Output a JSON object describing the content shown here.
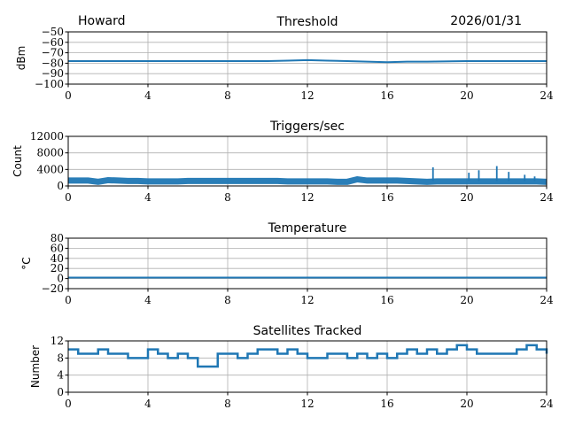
{
  "header": {
    "station": "Howard",
    "date": "2026/01/31"
  },
  "colors": {
    "series": "#1f77b4"
  },
  "chart_data": [
    {
      "type": "line",
      "title": "Threshold",
      "ylabel": "dBm",
      "xlim": [
        0,
        24
      ],
      "ylim": [
        -100,
        -50
      ],
      "xticks": [
        "0",
        "4",
        "8",
        "12",
        "16",
        "20",
        "24"
      ],
      "yticks": [
        "−100",
        "−90",
        "−80",
        "−70",
        "−60",
        "−50"
      ],
      "ytick_values": [
        -100,
        -90,
        -80,
        -70,
        -60,
        -50
      ],
      "grid": true,
      "x": [
        0,
        2,
        4,
        6,
        8,
        10,
        11,
        12,
        13,
        14,
        15,
        16,
        17,
        18,
        20,
        22,
        24
      ],
      "values": [
        -78,
        -78,
        -78,
        -78,
        -78,
        -78,
        -77.5,
        -77,
        -77.5,
        -78,
        -78.5,
        -79,
        -78.5,
        -78.5,
        -78,
        -78,
        -78
      ]
    },
    {
      "type": "line",
      "title": "Triggers/sec",
      "ylabel": "Count",
      "xlim": [
        0,
        24
      ],
      "ylim": [
        0,
        12000
      ],
      "xticks": [
        "0",
        "4",
        "8",
        "12",
        "16",
        "20",
        "24"
      ],
      "yticks": [
        "0",
        "4000",
        "8000",
        "12000"
      ],
      "ytick_values": [
        0,
        4000,
        8000,
        12000
      ],
      "grid": true,
      "x": [
        0,
        0.5,
        1,
        1.5,
        2,
        2.5,
        3,
        3.5,
        4,
        4.5,
        5,
        5.5,
        6,
        6.5,
        7,
        7.5,
        8,
        8.5,
        9,
        9.5,
        10,
        10.5,
        11,
        11.5,
        12,
        12.5,
        13,
        13.5,
        14,
        14.5,
        15,
        15.5,
        16,
        16.5,
        17,
        17.5,
        18,
        18.5,
        19,
        19.5,
        20,
        20.5,
        21,
        21.5,
        22,
        22.5,
        23,
        23.5,
        24
      ],
      "values": [
        1300,
        1300,
        1300,
        1000,
        1400,
        1300,
        1200,
        1200,
        1100,
        1100,
        1100,
        1100,
        1200,
        1200,
        1200,
        1200,
        1200,
        1200,
        1200,
        1200,
        1200,
        1200,
        1100,
        1100,
        1100,
        1100,
        1100,
        1000,
        1000,
        1600,
        1300,
        1300,
        1300,
        1300,
        1200,
        1100,
        1000,
        1100,
        1100,
        1100,
        1100,
        1100,
        1100,
        1100,
        1100,
        1100,
        1100,
        1100,
        1000
      ],
      "spikes": [
        {
          "x": 18.3,
          "y": 4500
        },
        {
          "x": 20.1,
          "y": 3200
        },
        {
          "x": 20.6,
          "y": 3800
        },
        {
          "x": 21.5,
          "y": 4800
        },
        {
          "x": 22.1,
          "y": 3400
        },
        {
          "x": 22.9,
          "y": 2700
        },
        {
          "x": 23.4,
          "y": 2300
        }
      ]
    },
    {
      "type": "line",
      "title": "Temperature",
      "ylabel": "°C",
      "xlim": [
        0,
        24
      ],
      "ylim": [
        -20,
        80
      ],
      "xticks": [
        "0",
        "4",
        "8",
        "12",
        "16",
        "20",
        "24"
      ],
      "yticks": [
        "−20",
        "0",
        "20",
        "40",
        "60",
        "80"
      ],
      "ytick_values": [
        -20,
        0,
        20,
        40,
        60,
        80
      ],
      "grid": true,
      "x": [
        0,
        24
      ],
      "values": [
        2,
        2
      ]
    },
    {
      "type": "line",
      "title": "Satellites Tracked",
      "ylabel": "Number",
      "xlim": [
        0,
        24
      ],
      "ylim": [
        0,
        12
      ],
      "xticks": [
        "0",
        "4",
        "8",
        "12",
        "16",
        "20",
        "24"
      ],
      "yticks": [
        "0",
        "4",
        "8",
        "12"
      ],
      "ytick_values": [
        0,
        4,
        8,
        12
      ],
      "grid": true,
      "x": [
        0,
        0.5,
        1,
        1.5,
        2,
        2.5,
        3,
        3.5,
        4,
        4.5,
        5,
        5.5,
        6,
        6.5,
        7,
        7.5,
        8,
        8.5,
        9,
        9.5,
        10,
        10.5,
        11,
        11.5,
        12,
        12.5,
        13,
        13.5,
        14,
        14.5,
        15,
        15.5,
        16,
        16.5,
        17,
        17.5,
        18,
        18.5,
        19,
        19.5,
        20,
        20.5,
        21,
        21.5,
        22,
        22.5,
        23,
        23.5,
        24
      ],
      "values": [
        10,
        9,
        9,
        10,
        9,
        9,
        8,
        8,
        10,
        9,
        8,
        9,
        8,
        6,
        6,
        9,
        9,
        8,
        9,
        10,
        10,
        9,
        10,
        9,
        8,
        8,
        9,
        9,
        8,
        9,
        8,
        9,
        8,
        9,
        10,
        9,
        10,
        9,
        10,
        11,
        10,
        9,
        9,
        9,
        9,
        10,
        11,
        10,
        9
      ]
    }
  ]
}
